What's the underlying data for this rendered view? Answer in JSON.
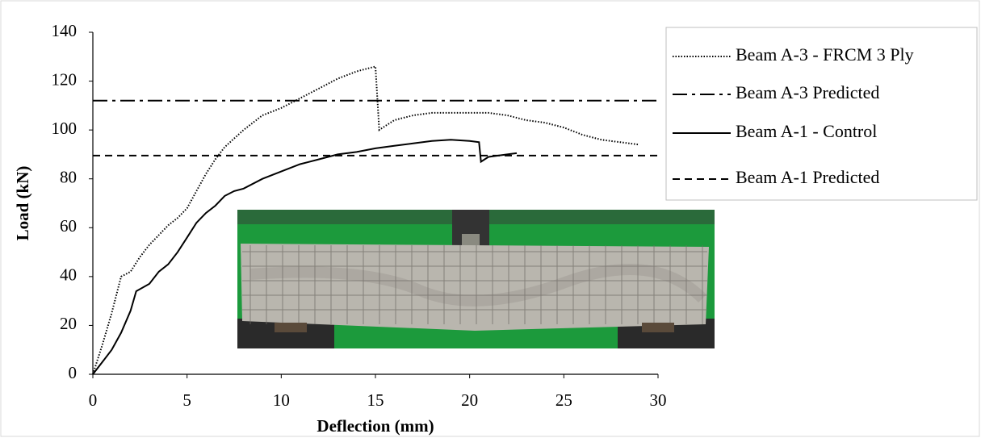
{
  "chart_data": {
    "type": "line",
    "x_label": "Deflection (mm)",
    "y_label": "Load (kN)",
    "xlim": [
      0,
      30
    ],
    "xticks": [
      0,
      5,
      10,
      15,
      20,
      25,
      30
    ],
    "ylim": [
      0,
      140
    ],
    "yticks": [
      0,
      20,
      40,
      60,
      80,
      100,
      120,
      140
    ],
    "grid": false,
    "legend": "right",
    "series": [
      {
        "name": "Beam A-3 - FRCM 3 Ply",
        "color": "#000000",
        "style": "dotted",
        "x": [
          0,
          0.5,
          1,
          1.5,
          2,
          2.5,
          3,
          3.5,
          4,
          4.5,
          5,
          5.5,
          6,
          6.5,
          7,
          8,
          9,
          10,
          11,
          12,
          13,
          14,
          15,
          15.2,
          16,
          17,
          18,
          19,
          20,
          21,
          22,
          23,
          24,
          25,
          26,
          27,
          28,
          29
        ],
        "values": [
          0,
          12,
          25,
          40,
          42,
          48,
          53,
          57,
          61,
          64,
          68,
          75,
          82,
          88,
          93,
          100,
          106,
          109,
          113,
          117,
          121,
          124,
          126,
          100,
          104,
          106,
          107,
          107,
          107,
          107,
          106,
          104,
          103,
          101,
          98,
          96,
          95,
          94
        ]
      },
      {
        "name": "Beam A-3 Predicted",
        "color": "#000000",
        "style": "dashdot",
        "x": [
          0,
          30
        ],
        "values": [
          112,
          112
        ]
      },
      {
        "name": "Beam A-1 - Control",
        "color": "#000000",
        "style": "solid",
        "x": [
          0,
          0.5,
          1,
          1.5,
          2,
          2.3,
          3,
          3.5,
          4,
          4.5,
          5,
          5.5,
          6,
          6.5,
          7,
          7.5,
          8,
          9,
          10,
          11,
          12,
          13,
          14,
          15,
          16,
          17,
          18,
          19,
          20,
          20.5,
          20.6,
          21,
          22,
          22.5
        ],
        "values": [
          0,
          5,
          10,
          17,
          26,
          34,
          37,
          42,
          45,
          50,
          56,
          62,
          66,
          69,
          73,
          75,
          76,
          80,
          83,
          86,
          88,
          90,
          91,
          92.5,
          93.5,
          94.5,
          95.5,
          96,
          95.5,
          95,
          87,
          89,
          90,
          90.5
        ]
      },
      {
        "name": "Beam A-1 Predicted",
        "color": "#000000",
        "style": "dashed",
        "x": [
          0,
          30
        ],
        "values": [
          89.5,
          89.5
        ]
      }
    ]
  }
}
